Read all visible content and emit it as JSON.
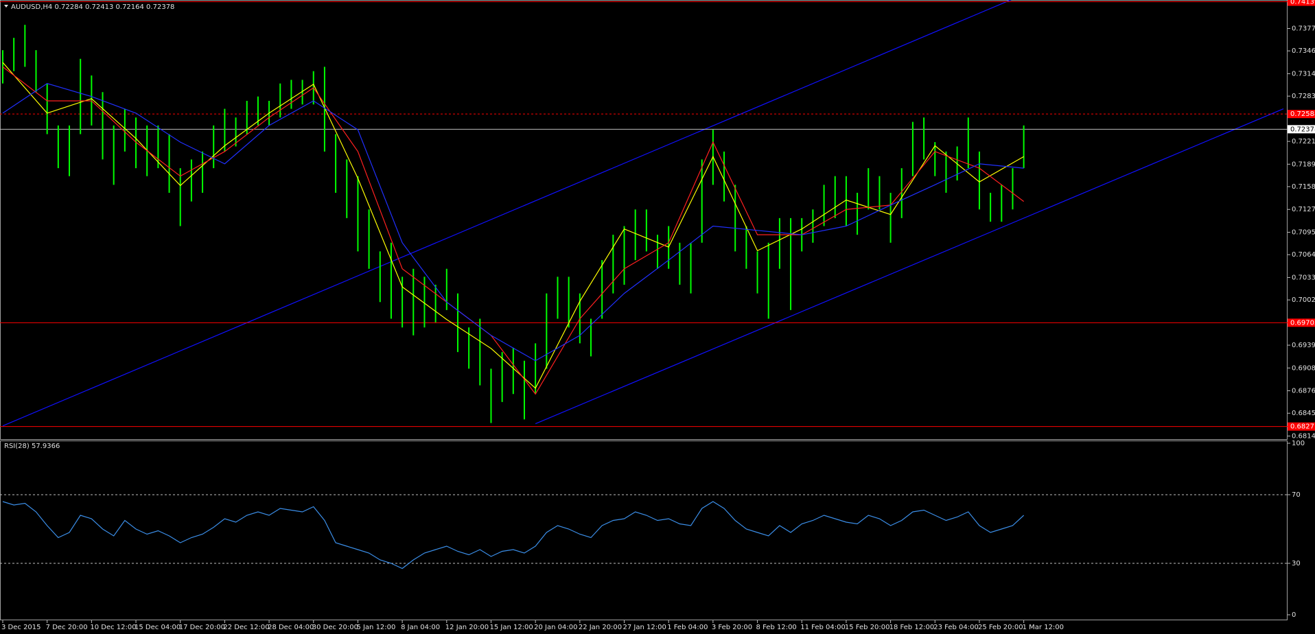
{
  "chart_data": [
    {
      "type": "ohlc",
      "title": "AUDUSD,H4  0.72284 0.72413 0.72164 0.72378",
      "categories": [
        "3 Dec 2015",
        "7 Dec 20:00",
        "10 Dec 12:00",
        "15 Dec 04:00",
        "17 Dec 20:00",
        "22 Dec 12:00",
        "28 Dec 04:00",
        "30 Dec 20:00",
        "5 Jan 12:00",
        "8 Jan 04:00",
        "12 Jan 20:00",
        "15 Jan 12:00",
        "20 Jan 04:00",
        "22 Jan 20:00",
        "27 Jan 12:00",
        "1 Feb 04:00",
        "3 Feb 20:00",
        "8 Feb 12:00",
        "11 Feb 04:00",
        "15 Feb 20:00",
        "18 Feb 12:00",
        "23 Feb 04:00",
        "25 Feb 20:00",
        "1 Mar 12:00"
      ],
      "color": "#00ff00",
      "high": [
        0.7347,
        0.7364,
        0.7382,
        0.7347,
        0.7301,
        0.7243,
        0.7243,
        0.7335,
        0.7312,
        0.7289,
        0.7243,
        0.7266,
        0.7254,
        0.7243,
        0.7243,
        0.7231,
        0.7184,
        0.7196,
        0.7207,
        0.7243,
        0.7266,
        0.7254,
        0.7277,
        0.7283,
        0.7277,
        0.7301,
        0.7306,
        0.7306,
        0.7318,
        0.7324,
        0.7231,
        0.7196,
        0.7173,
        0.7127,
        0.7069,
        0.7081,
        0.7034,
        0.7045,
        0.7034,
        0.7023,
        0.7045,
        0.7011,
        0.6964,
        0.6976,
        0.6907,
        0.693,
        0.6936,
        0.6918,
        0.6942,
        0.7011,
        0.7034,
        0.7034,
        0.7011,
        0.6976,
        0.7057,
        0.7092,
        0.7104,
        0.7127,
        0.7127,
        0.7092,
        0.7104,
        0.7081,
        0.7081,
        0.7196,
        0.7237,
        0.7207,
        0.7161,
        0.7104,
        0.7069,
        0.7081,
        0.7115,
        0.7115,
        0.7115,
        0.7127,
        0.7161,
        0.7173,
        0.7173,
        0.715,
        0.7184,
        0.7173,
        0.715,
        0.7184,
        0.7248,
        0.7254,
        0.722,
        0.7207,
        0.7214,
        0.7254,
        0.7207,
        0.715,
        0.7161,
        0.7184,
        0.7243
      ],
      "low": [
        0.7301,
        0.7318,
        0.7324,
        0.7289,
        0.7231,
        0.7184,
        0.7173,
        0.7231,
        0.7243,
        0.7196,
        0.7161,
        0.7207,
        0.7184,
        0.7173,
        0.7184,
        0.715,
        0.7104,
        0.7138,
        0.715,
        0.7184,
        0.7207,
        0.7214,
        0.7231,
        0.7243,
        0.7243,
        0.7254,
        0.7266,
        0.7272,
        0.7272,
        0.7207,
        0.715,
        0.7115,
        0.7069,
        0.7045,
        0.6999,
        0.6976,
        0.6964,
        0.6953,
        0.6964,
        0.6971,
        0.6988,
        0.693,
        0.6907,
        0.6884,
        0.6832,
        0.6861,
        0.6872,
        0.6837,
        0.6872,
        0.6907,
        0.6976,
        0.6964,
        0.6942,
        0.6924,
        0.6976,
        0.7011,
        0.7023,
        0.7057,
        0.7069,
        0.7045,
        0.7045,
        0.7023,
        0.7011,
        0.7081,
        0.7161,
        0.7138,
        0.7069,
        0.7045,
        0.7011,
        0.6976,
        0.7045,
        0.6988,
        0.7069,
        0.7081,
        0.7104,
        0.7115,
        0.7104,
        0.7092,
        0.7127,
        0.7127,
        0.7081,
        0.7115,
        0.7173,
        0.7196,
        0.7173,
        0.715,
        0.7167,
        0.7184,
        0.7127,
        0.711,
        0.711,
        0.7127,
        0.7184
      ],
      "series": [
        {
          "color": "#ffff00",
          "values": [
            0.733,
            0.726,
            0.728,
            0.7225,
            0.716,
            0.7215,
            0.726,
            0.73,
            0.717,
            0.702,
            0.6975,
            0.6935,
            0.688,
            0.7,
            0.71,
            0.7075,
            0.72,
            0.707,
            0.71,
            0.714,
            0.712,
            0.7215,
            0.7165,
            0.72
          ]
        },
        {
          "color": "#ff2020",
          "values": [
            0.7324,
            0.7277,
            0.7277,
            0.722,
            0.7173,
            0.7207,
            0.7254,
            0.7295,
            0.7207,
            0.7045,
            0.6999,
            0.6953,
            0.6872,
            0.6976,
            0.7045,
            0.7081,
            0.722,
            0.7092,
            0.7092,
            0.7127,
            0.7133,
            0.7207,
            0.7184,
            0.7138
          ]
        },
        {
          "color": "#2030ff",
          "values": [
            0.726,
            0.7301,
            0.7283,
            0.726,
            0.722,
            0.719,
            0.7243,
            0.7277,
            0.7237,
            0.7081,
            0.6999,
            0.6953,
            0.6918,
            0.6953,
            0.7011,
            0.7057,
            0.7104,
            0.7098,
            0.7092,
            0.7104,
            0.7133,
            0.7161,
            0.719,
            0.7184
          ]
        }
      ],
      "trendlines": [
        {
          "color": "#1010ff",
          "x": [
            0,
            23
          ],
          "values": [
            0.6828,
            0.7424
          ]
        },
        {
          "color": "#1010ff",
          "x": [
            12,
            28.85
          ],
          "values": [
            0.6831,
            0.7266
          ]
        }
      ],
      "levels": [
        {
          "value": 0.74139,
          "color": "#ff0000",
          "style": "solid"
        },
        {
          "value": 0.72588,
          "color": "#ff0000",
          "style": "dashed"
        },
        {
          "value": 0.72378,
          "color": "#c0c0c0",
          "style": "solid"
        },
        {
          "value": 0.69705,
          "color": "#ff0000",
          "style": "solid"
        },
        {
          "value": 0.68271,
          "color": "#ff0000",
          "style": "solid"
        }
      ],
      "ylim": [
        0.68097,
        0.74163
      ],
      "yticks": [
        {
          "value": 0.6814,
          "label": "0.68140"
        },
        0.68455,
        0.68765,
        {
          "value": 0.6908,
          "label": "0.69080"
        },
        0.69395,
        {
          "value": 0.7002,
          "label": "0.70020"
        },
        {
          "value": 0.7033,
          "label": "0.70330"
        },
        0.70645,
        0.70955,
        {
          "value": 0.7127,
          "label": "0.71270"
        },
        0.71585,
        0.71895,
        {
          "value": 0.7221,
          "label": "0.72210"
        },
        0.72835,
        0.73145,
        {
          "value": 0.7346,
          "label": "0.73460"
        },
        {
          "value": 0.7377,
          "label": "0.73770"
        }
      ]
    },
    {
      "type": "line",
      "title": "RSI(28) 57.9366",
      "color": "#3b8ee8",
      "values": [
        66,
        64,
        65,
        60,
        52,
        45,
        48,
        58,
        56,
        50,
        46,
        55,
        50,
        47,
        49,
        46,
        42,
        45,
        47,
        51,
        56,
        54,
        58,
        60,
        58,
        62,
        61,
        60,
        63,
        55,
        42,
        40,
        38,
        36,
        32,
        30,
        27,
        32,
        36,
        38,
        40,
        37,
        35,
        38,
        34,
        37,
        38,
        36,
        40,
        48,
        52,
        50,
        47,
        45,
        52,
        55,
        56,
        60,
        58,
        55,
        56,
        53,
        52,
        62,
        66,
        62,
        55,
        50,
        48,
        46,
        52,
        48,
        53,
        55,
        58,
        56,
        54,
        53,
        58,
        56,
        52,
        55,
        60,
        61,
        58,
        55,
        57,
        60,
        52,
        48,
        50,
        52,
        58
      ],
      "ylim": [
        0,
        100
      ],
      "yticks": [
        0,
        30,
        70,
        100
      ]
    }
  ]
}
